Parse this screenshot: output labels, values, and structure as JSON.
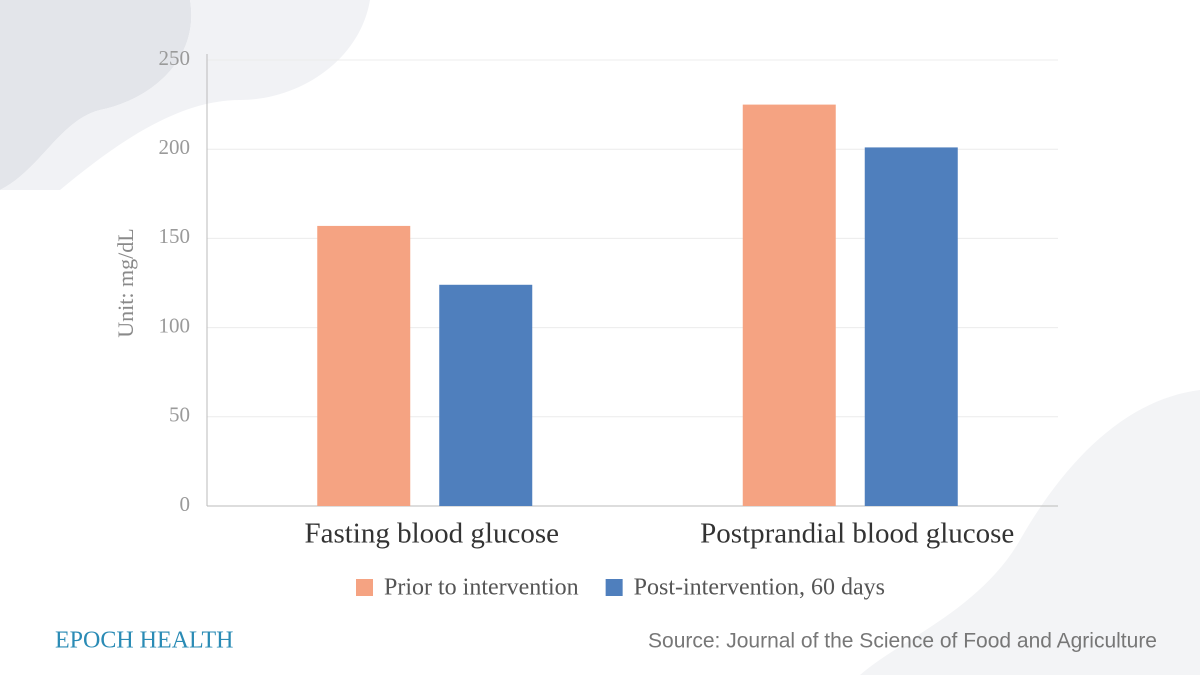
{
  "chart_data": {
    "type": "bar",
    "categories": [
      "Fasting blood glucose",
      "Postprandial blood glucose"
    ],
    "series": [
      {
        "name": "Prior to intervention",
        "color": "#f5a382",
        "values": [
          157,
          225
        ]
      },
      {
        "name": "Post-intervention, 60 days",
        "color": "#4f7fbd",
        "values": [
          124,
          201
        ]
      }
    ],
    "y_label": "Unit: mg/dL",
    "ylim": [
      0,
      250
    ],
    "yticks": [
      0,
      50,
      100,
      150,
      200,
      250
    ],
    "grid": true,
    "legend": "bottom",
    "source": "Source: Journal of the Science of Food and Agriculture",
    "brand": "EPOCH HEALTH"
  }
}
